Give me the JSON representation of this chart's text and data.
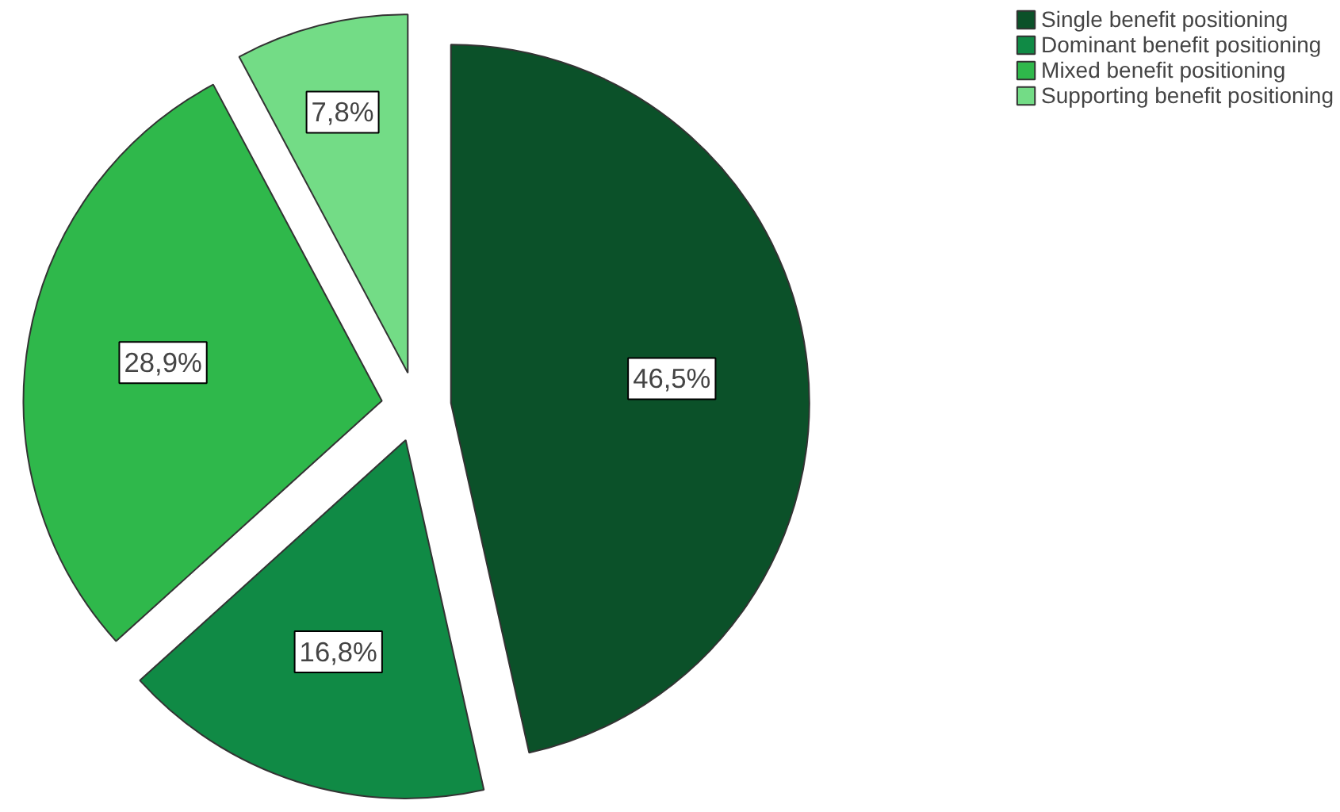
{
  "chart_data": {
    "type": "pie",
    "categories": [
      "Single benefit positioning",
      "Dominant benefit positioning",
      "Mixed benefit positioning",
      "Supporting benefit positioning"
    ],
    "values": [
      46.5,
      16.8,
      28.9,
      7.8
    ],
    "colors": [
      "#0b5129",
      "#108a45",
      "#2fb84b",
      "#73dc86"
    ],
    "value_labels": [
      "46,5%",
      "16,8%",
      "28,9%",
      "7,8%"
    ],
    "legend": "top right"
  }
}
